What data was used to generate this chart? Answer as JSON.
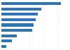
{
  "values": [
    8.4,
    5.6,
    5.1,
    4.8,
    4.6,
    4.4,
    2.2,
    1.5,
    0.7
  ],
  "bar_color": "#2e75b6",
  "background_color": "#ffffff",
  "grid_color": "#e0e0e0",
  "xlim": [
    0,
    9.5
  ]
}
